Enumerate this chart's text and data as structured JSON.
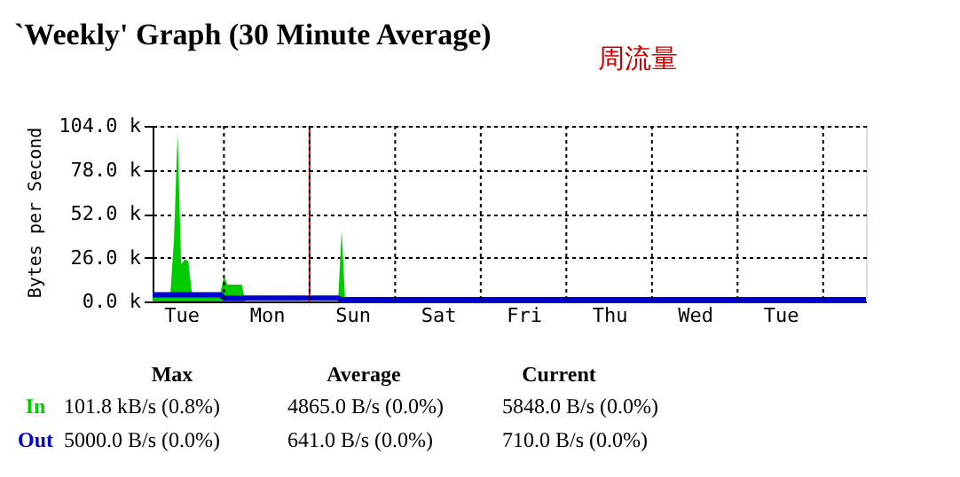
{
  "chart_data": {
    "type": "area",
    "title": "`Weekly' Graph (30 Minute Average)",
    "ylabel": "Bytes per Second",
    "categories": [
      null,
      null,
      null,
      null,
      null,
      null,
      null,
      null,
      "Tue",
      null,
      null,
      null,
      null,
      null,
      null,
      null,
      null,
      null,
      null,
      null,
      null,
      null,
      null,
      null,
      null,
      null,
      null,
      null,
      null,
      null,
      null,
      null,
      "Mon",
      null,
      null,
      null,
      null,
      null,
      null,
      null,
      null,
      null,
      null,
      null,
      null,
      null,
      null,
      null,
      null,
      null,
      null,
      null,
      null,
      null,
      null,
      null,
      "Sun",
      null,
      null,
      null,
      null,
      null,
      null,
      null,
      null,
      null,
      null,
      null,
      null,
      null,
      null,
      null,
      null,
      null,
      null,
      null,
      null,
      null,
      null,
      null,
      "Sat",
      null,
      null,
      null,
      null,
      null,
      null,
      null,
      null,
      null,
      null,
      null,
      null,
      null,
      null,
      null,
      null,
      null,
      null,
      null,
      null,
      null,
      null,
      null,
      "Fri",
      null,
      null,
      null,
      null,
      null,
      null,
      null,
      null,
      null,
      null,
      null,
      null,
      null,
      null,
      null,
      null,
      null,
      null,
      null,
      null,
      null,
      null,
      null,
      "Thu",
      null,
      null,
      null,
      null,
      null,
      null,
      null,
      null,
      null,
      null,
      null,
      null,
      null,
      null,
      null,
      null,
      null,
      null,
      null,
      null,
      null,
      null,
      null,
      "Wed",
      null,
      null,
      null,
      null,
      null,
      null,
      null,
      null,
      null,
      null,
      null,
      null,
      null,
      null,
      null,
      null,
      null,
      null,
      null,
      null,
      null,
      null,
      null,
      "Tue",
      null,
      null,
      null,
      null,
      null,
      null,
      null,
      null,
      null,
      null,
      null,
      null,
      null,
      null,
      null,
      null,
      null,
      null,
      null,
      null,
      null,
      null,
      null,
      null
    ],
    "ylim": [
      0,
      104000
    ],
    "yticks": [
      {
        "value": 0,
        "label": "0.0 k"
      },
      {
        "value": 26000,
        "label": "26.0 k"
      },
      {
        "value": 52000,
        "label": "52.0 k"
      },
      {
        "value": 78000,
        "label": "78.0 k"
      },
      {
        "value": 104000,
        "label": "104.0 k"
      }
    ],
    "grid": true,
    "series": [
      {
        "name": "In",
        "color": "#00cc00",
        "values": [
          5000,
          5000,
          5000,
          5000,
          5000,
          5000,
          37000,
          100000,
          22000,
          25000,
          24000,
          5000,
          5000,
          5000,
          5000,
          5000,
          5000,
          5000,
          5000,
          5000,
          15000,
          10000,
          10000,
          10000,
          10000,
          10000,
          0,
          0,
          0,
          0,
          0,
          0,
          0,
          0,
          0,
          0,
          0,
          0,
          0,
          0,
          0,
          0,
          0,
          0,
          0,
          0,
          0,
          0,
          0,
          0,
          0,
          0,
          0,
          42000,
          0,
          0,
          0,
          0,
          0,
          0,
          0,
          0,
          0,
          0,
          0,
          0,
          0,
          0,
          0,
          0,
          0,
          0,
          0,
          0,
          0,
          0,
          0,
          0,
          0,
          0,
          0,
          0,
          0,
          0,
          0,
          0,
          0,
          0,
          0,
          0,
          0,
          0,
          0,
          0,
          0,
          0,
          0,
          0,
          0,
          0,
          0,
          0,
          0,
          0,
          0,
          0,
          0,
          0,
          0,
          0,
          0,
          0,
          0,
          0,
          0,
          0,
          0,
          0,
          0,
          0,
          0,
          0,
          0,
          0,
          0,
          0,
          0,
          0,
          0,
          0,
          0,
          0,
          0,
          0,
          0,
          0,
          0,
          0,
          0,
          0,
          0,
          0,
          0,
          0,
          0,
          0,
          0,
          0,
          0,
          0,
          0,
          0,
          0,
          0,
          0,
          0,
          0,
          0,
          0,
          0,
          0,
          0,
          0,
          0,
          0,
          0,
          0,
          0,
          0,
          0,
          0,
          0,
          0,
          0,
          0,
          0,
          0,
          0,
          0,
          0,
          0,
          0,
          0,
          0,
          0,
          0,
          0,
          0,
          0,
          0,
          0,
          0,
          0,
          0,
          0,
          0,
          0,
          0,
          0,
          0,
          0
        ]
      },
      {
        "name": "Out",
        "type": "line",
        "color": "#0000cc",
        "values": [
          4000,
          4000,
          4000,
          4000,
          4000,
          4000,
          4000,
          4000,
          4000,
          4000,
          4000,
          4000,
          4000,
          4000,
          4000,
          4000,
          4000,
          4000,
          4000,
          4000,
          2000,
          2000,
          2000,
          2000,
          2000,
          2000,
          2000,
          2000,
          2000,
          2000,
          2000,
          2000,
          2000,
          2000,
          2000,
          2000,
          2000,
          2000,
          2000,
          2000,
          2000,
          2000,
          2000,
          2000,
          2000,
          2000,
          2000,
          2000,
          2000,
          2000,
          2000,
          2000,
          2000,
          1000,
          1000,
          1000,
          1000,
          1000,
          1000,
          1000,
          1000,
          1000,
          1000,
          1000,
          1000,
          1000,
          1000,
          1000,
          1000,
          1000,
          1000,
          1000,
          1000,
          1000,
          1000,
          1000,
          1000,
          1000,
          1000,
          1000,
          1000,
          1000,
          1000,
          1000,
          1000,
          1000,
          1000,
          1000,
          1000,
          1000,
          1000,
          1000,
          1000,
          1000,
          1000,
          1000,
          1000,
          1000,
          1000,
          1000,
          1000,
          1000,
          1000,
          1000,
          1000,
          1000,
          1000,
          1000,
          1000,
          1000,
          1000,
          1000,
          1000,
          1000,
          1000,
          1000,
          1000,
          1000,
          1000,
          1000,
          1000,
          1000,
          1000,
          1000,
          1000,
          1000,
          1000,
          1000,
          1000,
          1000,
          1000,
          1000,
          1000,
          1000,
          1000,
          1000,
          1000,
          1000,
          1000,
          1000,
          1000,
          1000,
          1000,
          1000,
          1000,
          1000,
          1000,
          1000,
          1000,
          1000,
          1000,
          1000,
          1000,
          1000,
          1000,
          1000,
          1000,
          1000,
          1000,
          1000,
          1000,
          1000,
          1000,
          1000,
          1000,
          1000,
          1000,
          1000,
          1000,
          1000,
          1000,
          1000,
          1000,
          1000,
          1000,
          1000,
          1000,
          1000,
          1000,
          1000,
          1000,
          1000,
          1000,
          1000,
          1000,
          1000,
          1000,
          1000,
          1000,
          1000,
          1000,
          1000,
          1000,
          1000,
          1000,
          1000,
          1000,
          1000,
          1000,
          1000,
          1000
        ]
      }
    ],
    "annotations": [
      "周流量",
      "Max",
      "Average",
      "Current",
      "101.8 kB/s (0.8%)",
      "4865.0 B/s (0.0%)",
      "5848.0 B/s (0.0%)",
      "5000.0 B/s (0.0%)",
      "641.0 B/s (0.0%)",
      "710.0 B/s (0.0%)"
    ]
  }
}
